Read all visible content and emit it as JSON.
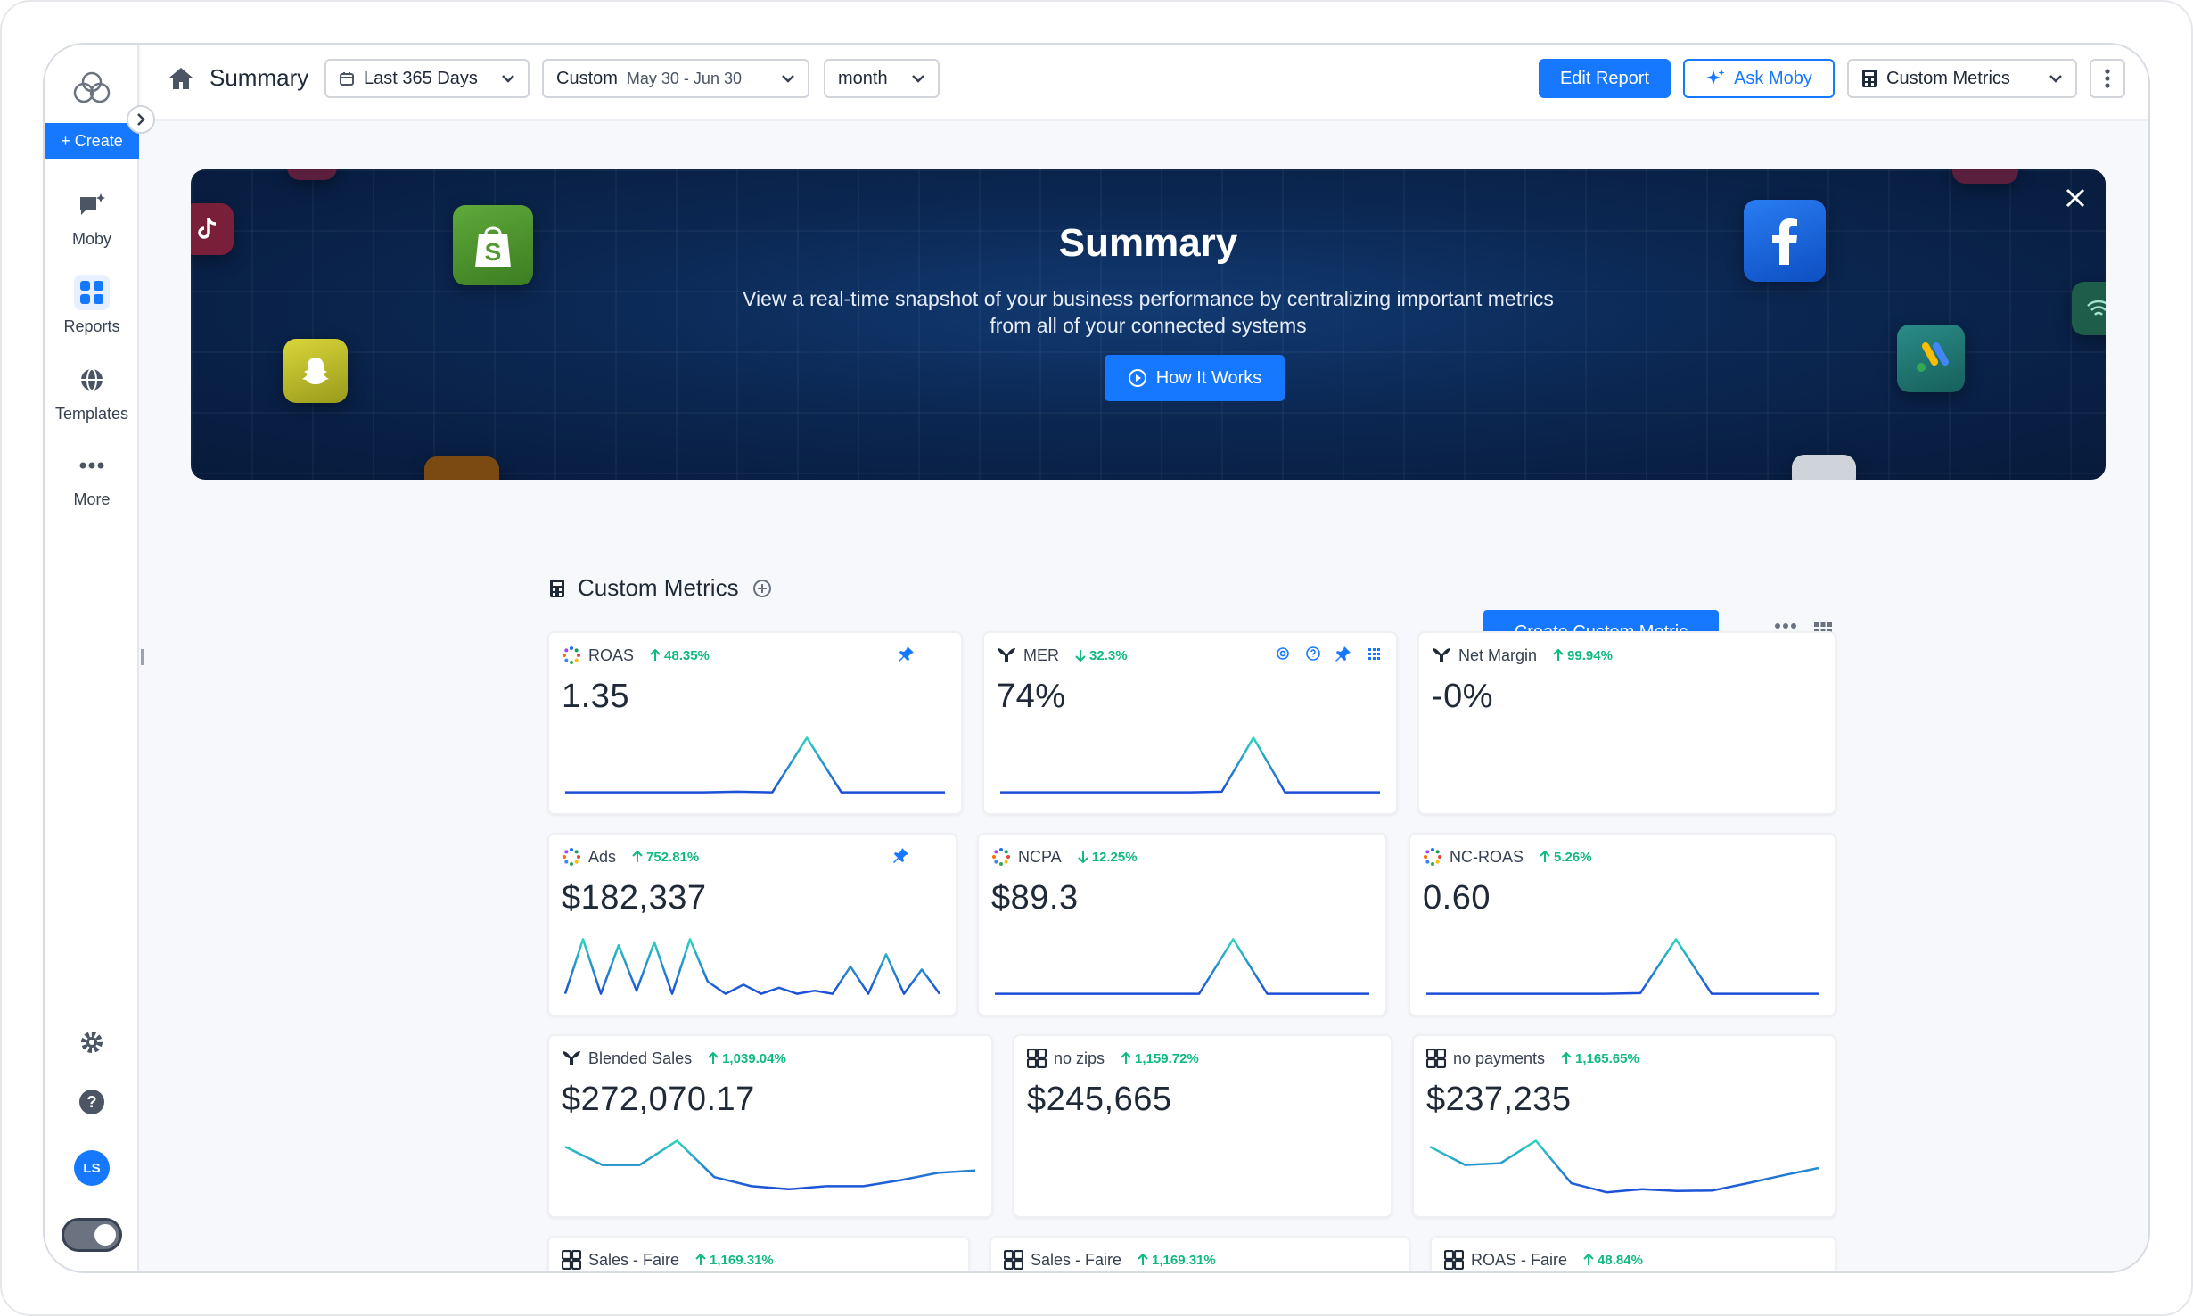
{
  "sidebar": {
    "create_label": "+ Create",
    "items": [
      {
        "label": "Moby",
        "icon": "chat-sparkle-icon"
      },
      {
        "label": "Reports",
        "icon": "grid-icon"
      },
      {
        "label": "Templates",
        "icon": "globe-icon"
      },
      {
        "label": "More",
        "icon": "more-dots-icon"
      }
    ],
    "avatar": "LS"
  },
  "header": {
    "title": "Summary",
    "range": "Last 365 Days",
    "compare_label": "Custom",
    "compare_dates": "May 30 - Jun 30",
    "granularity": "month",
    "edit_report": "Edit Report",
    "ask_moby": "Ask Moby",
    "custom_metrics": "Custom Metrics"
  },
  "banner": {
    "title": "Summary",
    "text": "View a real-time snapshot of your business performance by centralizing important metrics from all of your connected systems",
    "button": "How It Works"
  },
  "section": {
    "title": "Custom Metrics",
    "create_button": "Create Custom Metric"
  },
  "metrics": [
    {
      "name": "ROAS",
      "dir": "up",
      "change": "48.35%",
      "value": "1.35",
      "source": "multi",
      "spark": [
        0.05,
        0.05,
        0.05,
        0.05,
        0.05,
        0.06,
        0.05,
        0.95,
        0.05,
        0.05,
        0.05,
        0.05
      ]
    },
    {
      "name": "MER",
      "dir": "down",
      "change": "32.3%",
      "value": "74%",
      "source": "tw",
      "spark": [
        0.05,
        0.05,
        0.05,
        0.05,
        0.05,
        0.05,
        0.05,
        0.06,
        0.95,
        0.05,
        0.05,
        0.05,
        0.05
      ]
    },
    {
      "name": "Net Margin",
      "dir": "up",
      "change": "99.94%",
      "value": "-0%",
      "source": "tw",
      "spark": []
    },
    {
      "name": "Ads",
      "dir": "up",
      "change": "752.81%",
      "value": "$182,337",
      "source": "multi",
      "spark": [
        0.05,
        0.95,
        0.05,
        0.85,
        0.1,
        0.9,
        0.05,
        0.95,
        0.25,
        0.05,
        0.2,
        0.05,
        0.15,
        0.05,
        0.1,
        0.05,
        0.5,
        0.05,
        0.7,
        0.05,
        0.45,
        0.05
      ]
    },
    {
      "name": "NCPA",
      "dir": "down",
      "change": "12.25%",
      "value": "$89.3",
      "source": "multi",
      "spark": [
        0.05,
        0.05,
        0.05,
        0.05,
        0.05,
        0.05,
        0.05,
        0.95,
        0.05,
        0.05,
        0.05,
        0.05
      ]
    },
    {
      "name": "NC-ROAS",
      "dir": "up",
      "change": "5.26%",
      "value": "0.60",
      "source": "multi",
      "spark": [
        0.05,
        0.05,
        0.05,
        0.05,
        0.05,
        0.05,
        0.06,
        0.95,
        0.05,
        0.05,
        0.05,
        0.05
      ]
    },
    {
      "name": "Blended Sales",
      "dir": "up",
      "change": "1,039.04%",
      "value": "$272,070.17",
      "source": "tw",
      "spark": [
        0.85,
        0.55,
        0.55,
        0.95,
        0.35,
        0.2,
        0.15,
        0.2,
        0.2,
        0.3,
        0.42,
        0.46
      ]
    },
    {
      "name": "no zips",
      "dir": "up",
      "change": "1,159.72%",
      "value": "$245,665",
      "source": "calc",
      "spark": []
    },
    {
      "name": "no payments",
      "dir": "up",
      "change": "1,165.65%",
      "value": "$237,235",
      "source": "calc",
      "spark": [
        0.85,
        0.55,
        0.58,
        0.95,
        0.25,
        0.1,
        0.15,
        0.12,
        0.13,
        0.25,
        0.38,
        0.5
      ]
    },
    {
      "name": "Sales - Faire",
      "dir": "up",
      "change": "1,169.31%",
      "value": "",
      "source": "calc",
      "spark": []
    },
    {
      "name": "Sales - Faire",
      "dir": "up",
      "change": "1,169.31%",
      "value": "",
      "source": "calc",
      "spark": []
    },
    {
      "name": "ROAS - Faire",
      "dir": "up",
      "change": "48.84%",
      "value": "",
      "source": "calc",
      "spark": []
    }
  ],
  "colors": {
    "accent": "#1677ff",
    "positive": "#10b981",
    "spark_start": "#2dd4bf",
    "spark_end": "#1d4ed8"
  }
}
